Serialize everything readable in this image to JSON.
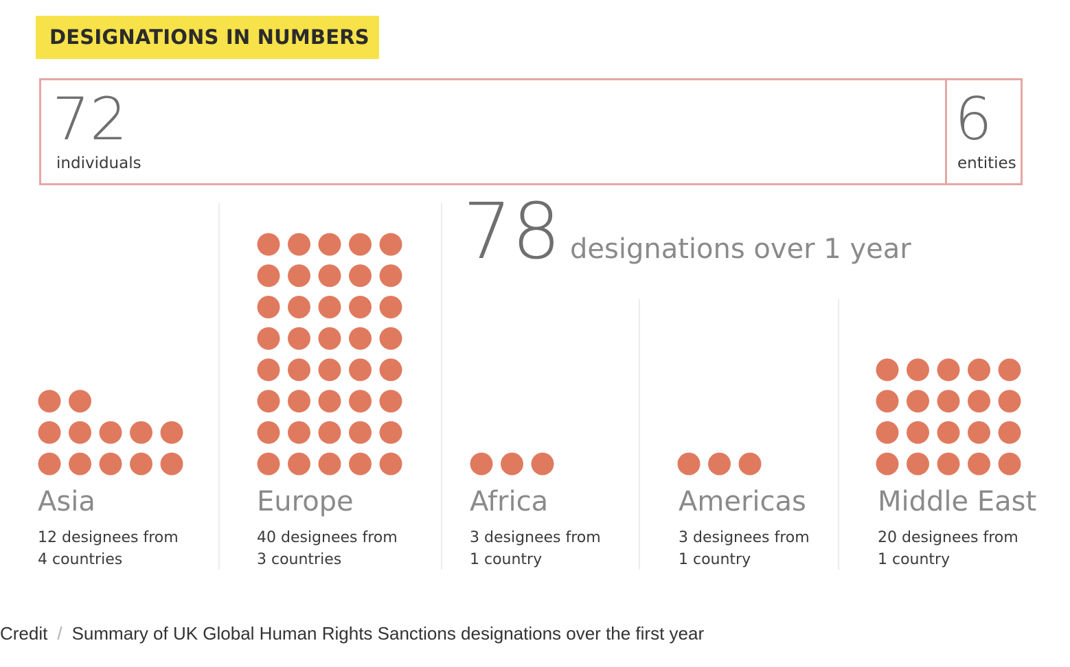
{
  "title": "DESIGNATIONS IN NUMBERS",
  "summary": {
    "individuals": {
      "value": "72",
      "label": "individuals"
    },
    "entities": {
      "value": "6",
      "label": "entities"
    },
    "total": {
      "value": "78",
      "label": "designations over 1 year"
    }
  },
  "colors": {
    "dot": "#e07a5f",
    "title_bg": "#f7e24a",
    "border": "#e5a7a4"
  },
  "chart_data": {
    "type": "bar",
    "categories": [
      "Asia",
      "Europe",
      "Africa",
      "Americas",
      "Middle East"
    ],
    "values": [
      12,
      40,
      3,
      3,
      20
    ],
    "countries": [
      4,
      3,
      1,
      1,
      1
    ],
    "title": "DESIGNATIONS IN NUMBERS",
    "descriptions": [
      [
        "12 designees from",
        "4 countries"
      ],
      [
        "40 designees from",
        "3 countries"
      ],
      [
        "3 designees from",
        "1 country"
      ],
      [
        "3 designees from",
        "1 country"
      ],
      [
        "20 designees from",
        "1 country"
      ]
    ],
    "dots_per_row": 5
  },
  "caption": {
    "credit": "Credit",
    "separator": "/",
    "text": "Summary of UK Global Human Rights Sanctions designations over the first year"
  }
}
